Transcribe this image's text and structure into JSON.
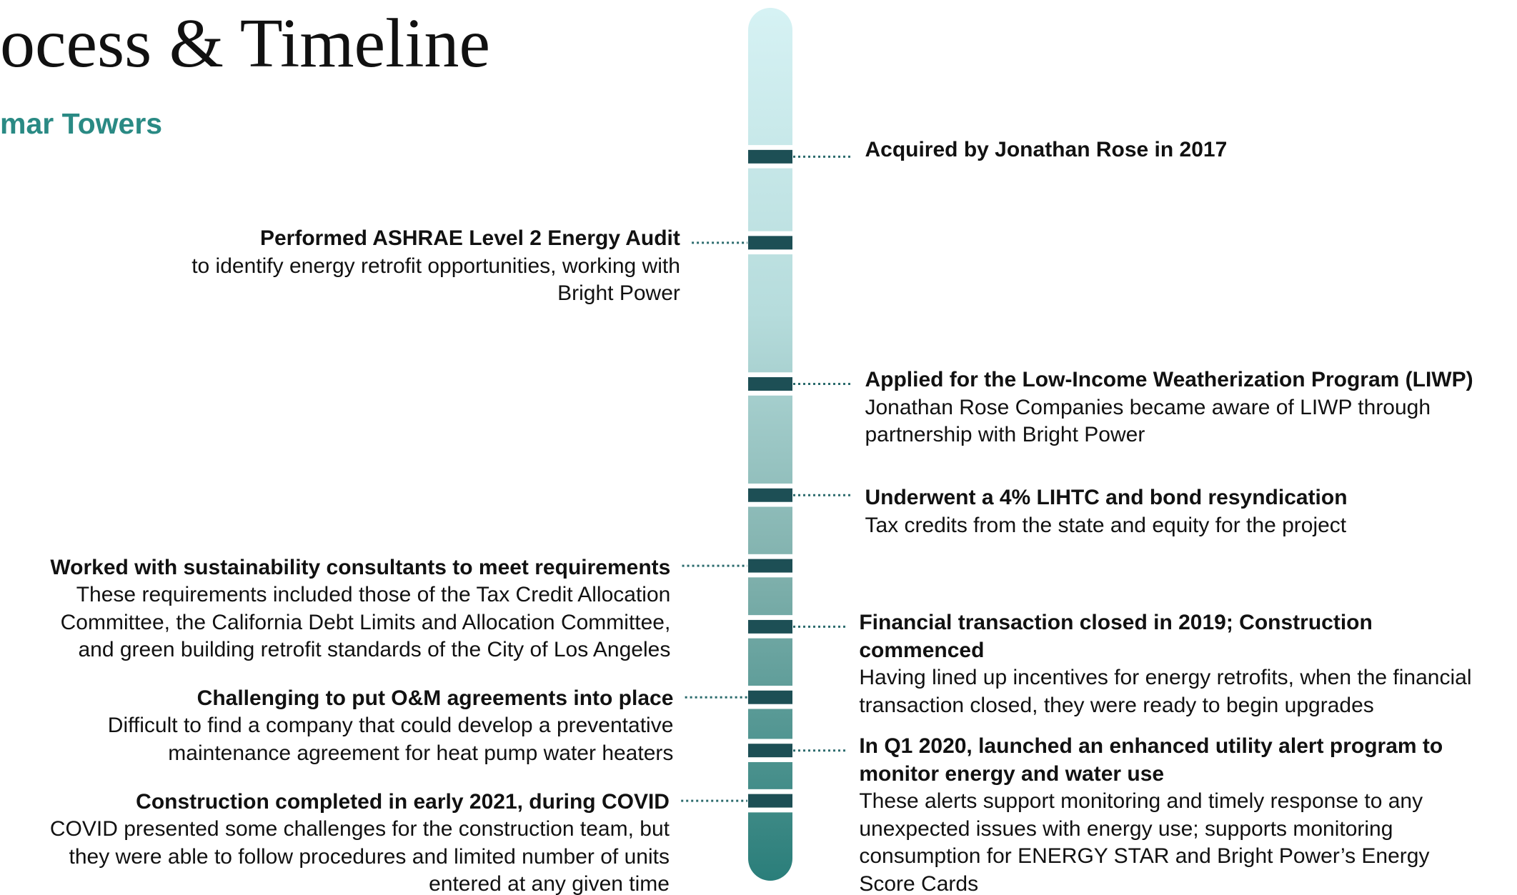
{
  "header": {
    "title": "ocess & Timeline",
    "subtitle": "mar Towers"
  },
  "events_right": [
    {
      "title": [
        "Acquired by Jonathan Rose in 2017"
      ],
      "body": []
    },
    {
      "title": [
        "Applied for the Low-Income Weatherization Program (LIWP)"
      ],
      "body": [
        "Jonathan Rose Companies became aware of LIWP through",
        "partnership with Bright Power"
      ]
    },
    {
      "title": [
        "Underwent a 4% LIHTC and bond resyndication"
      ],
      "body": [
        "Tax credits from the state and equity for the project"
      ]
    },
    {
      "title": [
        "Financial transaction closed in 2019; Construction",
        "commenced"
      ],
      "body": [
        "Having lined up incentives for energy retrofits, when the financial",
        "transaction closed, they were ready to begin upgrades"
      ]
    },
    {
      "title": [
        "In Q1 2020, launched an enhanced utility alert program to",
        "monitor energy and water use"
      ],
      "body": [
        "These alerts support monitoring and timely response to any",
        "unexpected issues with energy use; supports monitoring",
        "consumption for ENERGY STAR and Bright Power’s Energy",
        "Score Cards"
      ]
    }
  ],
  "events_left": [
    {
      "title": [
        "Performed ASHRAE Level 2 Energy Audit"
      ],
      "body": [
        "to identify energy retrofit opportunities, working with",
        "Bright Power"
      ]
    },
    {
      "title": [
        "Worked with sustainability consultants to meet requirements"
      ],
      "body": [
        "These requirements included those of the Tax Credit Allocation",
        "Committee, the California Debt Limits and Allocation Committee,",
        "and green building retrofit standards of the City of Los Angeles"
      ]
    },
    {
      "title": [
        "Challenging to put O&M agreements into place"
      ],
      "body": [
        "Difficult to find a company that could develop a preventative",
        "maintenance agreement for heat pump water heaters"
      ]
    },
    {
      "title": [
        "Construction completed in early 2021, during COVID"
      ],
      "body": [
        "COVID presented some challenges for the construction team, but",
        "they were able to follow procedures and limited number of units",
        "entered at any given time"
      ]
    }
  ]
}
